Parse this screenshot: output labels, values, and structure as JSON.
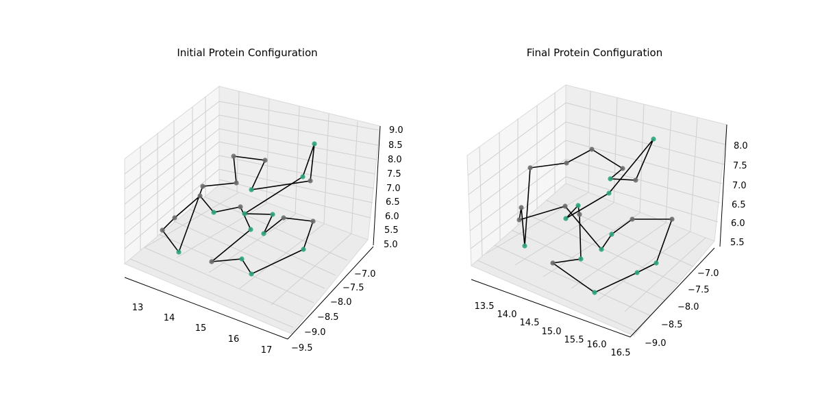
{
  "chart_data": [
    {
      "type": "scatter3d",
      "title": "Initial Protein Configuration",
      "x_ticks": [
        "13",
        "14",
        "15",
        "16",
        "17"
      ],
      "y_ticks": [
        "−9.5",
        "−9.0",
        "−8.5",
        "−8.0",
        "−7.5",
        "−7.0"
      ],
      "z_ticks": [
        "5.0",
        "5.5",
        "6.0",
        "6.5",
        "7.0",
        "7.5",
        "8.0",
        "8.5",
        "9.0"
      ],
      "grid": true,
      "colors": {
        "hydrophobic": "#2ca57a",
        "polar": "#6e6e6e",
        "bond": "#000000",
        "pane": "#f2f2f2",
        "grid": "#cfcfcf"
      },
      "residues": [
        {
          "type": "P",
          "pos": [
            341,
            228
          ]
        },
        {
          "type": "P",
          "pos": [
            387,
            234
          ]
        },
        {
          "type": "H",
          "pos": [
            367,
            277
          ]
        },
        {
          "type": "P",
          "pos": [
            453,
            264
          ]
        },
        {
          "type": "H",
          "pos": [
            459,
            210
          ]
        },
        {
          "type": "H",
          "pos": [
            442,
            258
          ]
        },
        {
          "type": "H",
          "pos": [
            357,
            312
          ]
        },
        {
          "type": "H",
          "pos": [
            398,
            313
          ]
        },
        {
          "type": "H",
          "pos": [
            385,
            341
          ]
        },
        {
          "type": "P",
          "pos": [
            414,
            318
          ]
        },
        {
          "type": "P",
          "pos": [
            457,
            323
          ]
        },
        {
          "type": "H",
          "pos": [
            443,
            364
          ]
        },
        {
          "type": "H",
          "pos": [
            367,
            400
          ]
        },
        {
          "type": "H",
          "pos": [
            353,
            378
          ]
        },
        {
          "type": "P",
          "pos": [
            309,
            382
          ]
        },
        {
          "type": "H",
          "pos": [
            366,
            335
          ]
        },
        {
          "type": "P",
          "pos": [
            351,
            302
          ]
        },
        {
          "type": "H",
          "pos": [
            312,
            310
          ]
        },
        {
          "type": "P",
          "pos": [
            292,
            286
          ]
        },
        {
          "type": "P",
          "pos": [
            255,
            318
          ]
        },
        {
          "type": "P",
          "pos": [
            237,
            336
          ]
        },
        {
          "type": "H",
          "pos": [
            261,
            368
          ]
        },
        {
          "type": "P",
          "pos": [
            296,
            272
          ]
        },
        {
          "type": "P",
          "pos": [
            345,
            267
          ]
        },
        {
          "type": "P",
          "pos": [
            341,
            228
          ]
        }
      ]
    },
    {
      "type": "scatter3d",
      "title": "Final Protein Configuration",
      "x_ticks": [
        "13.5",
        "14.0",
        "14.5",
        "15.0",
        "15.5",
        "16.0",
        "16.5"
      ],
      "y_ticks": [
        "−9.0",
        "−8.5",
        "−8.0",
        "−7.5",
        "−7.0"
      ],
      "z_ticks": [
        "5.5",
        "6.0",
        "6.5",
        "7.0",
        "7.5",
        "8.0"
      ],
      "grid": true,
      "colors": {
        "hydrophobic": "#2ca57a",
        "polar": "#6e6e6e",
        "bond": "#000000",
        "pane": "#f2f2f2",
        "grid": "#cfcfcf"
      },
      "residues": [
        {
          "type": "P",
          "pos": [
            774,
            245
          ]
        },
        {
          "type": "P",
          "pos": [
            827,
            238
          ]
        },
        {
          "type": "P",
          "pos": [
            864,
            218
          ]
        },
        {
          "type": "P",
          "pos": [
            909,
            246
          ]
        },
        {
          "type": "H",
          "pos": [
            891,
            261
          ]
        },
        {
          "type": "P",
          "pos": [
            928,
            263
          ]
        },
        {
          "type": "H",
          "pos": [
            954,
            203
          ]
        },
        {
          "type": "H",
          "pos": [
            889,
            282
          ]
        },
        {
          "type": "H",
          "pos": [
            826,
            319
          ]
        },
        {
          "type": "H",
          "pos": [
            844,
            300
          ]
        },
        {
          "type": "P",
          "pos": [
            846,
            313
          ]
        },
        {
          "type": "H",
          "pos": [
            848,
            378
          ]
        },
        {
          "type": "P",
          "pos": [
            807,
            384
          ]
        },
        {
          "type": "H",
          "pos": [
            868,
            427
          ]
        },
        {
          "type": "H",
          "pos": [
            930,
            398
          ]
        },
        {
          "type": "H",
          "pos": [
            958,
            384
          ]
        },
        {
          "type": "P",
          "pos": [
            981,
            320
          ]
        },
        {
          "type": "P",
          "pos": [
            923,
            320
          ]
        },
        {
          "type": "H",
          "pos": [
            893,
            342
          ]
        },
        {
          "type": "H",
          "pos": [
            878,
            364
          ]
        },
        {
          "type": "P",
          "pos": [
            825,
            301
          ]
        },
        {
          "type": "P",
          "pos": [
            758,
            321
          ]
        },
        {
          "type": "P",
          "pos": [
            761,
            303
          ]
        },
        {
          "type": "H",
          "pos": [
            766,
            359
          ]
        },
        {
          "type": "P",
          "pos": [
            774,
            245
          ]
        }
      ]
    }
  ]
}
